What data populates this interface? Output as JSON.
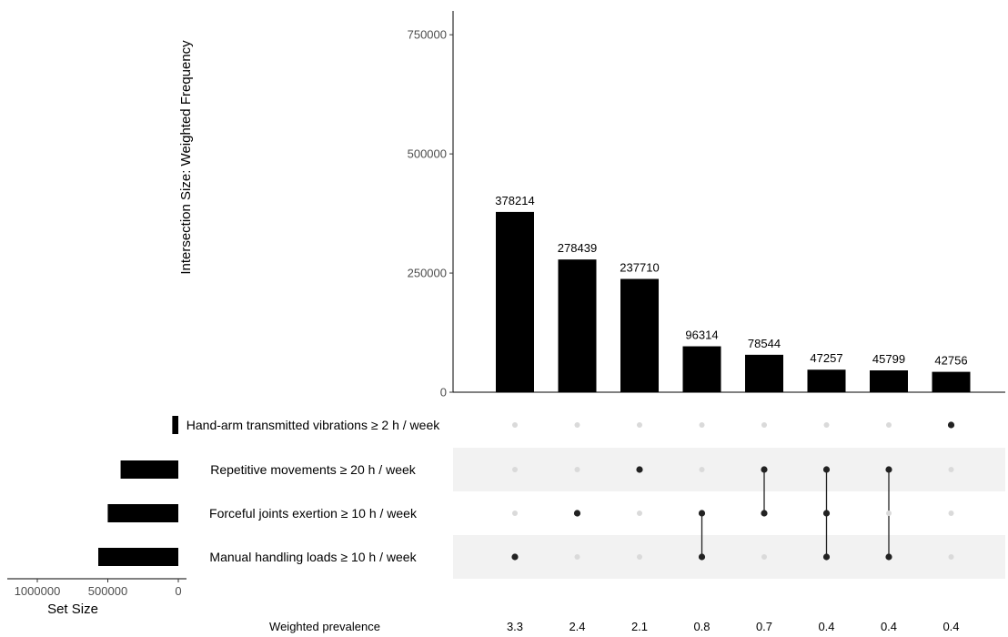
{
  "chart_data": {
    "type": "bar",
    "subtype": "upset",
    "ylabel": "Intersection Size: Weighted Frequency",
    "ylim": [
      0,
      800000
    ],
    "yticks": [
      0,
      250000,
      500000,
      750000
    ],
    "ytick_labels": [
      "0",
      "250000",
      "500000",
      "750000"
    ],
    "intersection_values": [
      378214,
      278439,
      237710,
      96314,
      78544,
      47257,
      45799,
      42756
    ],
    "intersection_value_labels": [
      "378214",
      "278439",
      "237710",
      "96314",
      "78544",
      "47257",
      "45799",
      "42756"
    ],
    "bar_color": "#000000",
    "sets": [
      {
        "name": "Hand-arm transmitted vibrations ≥ 2 h / week",
        "size": 42756
      },
      {
        "name": "Repetitive movements ≥ 20 h / week",
        "size": 409310
      },
      {
        "name": "Forceful joints exertion ≥ 10 h / week",
        "size": 500554
      },
      {
        "name": "Manual handling loads ≥ 10 h / week",
        "size": 567584
      }
    ],
    "memberships": [
      [
        3
      ],
      [
        2
      ],
      [
        1
      ],
      [
        2,
        3
      ],
      [
        1,
        2
      ],
      [
        1,
        2,
        3
      ],
      [
        1,
        3
      ],
      [
        0
      ]
    ],
    "set_size_xlabel": "Set Size",
    "set_size_xlim": [
      0,
      1200000
    ],
    "set_size_ticks": [
      1000000,
      500000,
      0
    ],
    "set_size_tick_labels": [
      "1000000",
      "500000",
      "0"
    ],
    "prevalence_label": "Weighted prevalence",
    "prevalence": [
      "3.3",
      "2.4",
      "2.1",
      "0.8",
      "0.7",
      "0.4",
      "0.4",
      "0.4"
    ],
    "matrix_shading": "#f2f2f2",
    "dot_active": "#222222",
    "dot_inactive": "#dadada"
  }
}
